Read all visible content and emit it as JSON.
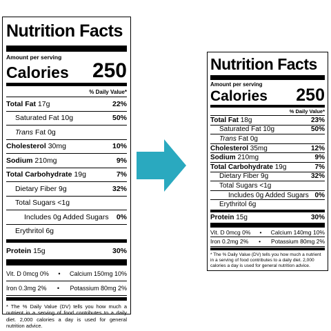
{
  "left_label": {
    "title": "Nutrition Facts",
    "amount_per_serving": "Amount per serving",
    "calories_label": "Calories",
    "calories_value": "250",
    "dv_header": "% Daily Value*",
    "rows": {
      "total_fat": {
        "name": "Total Fat",
        "amount": "17g",
        "pct": "22%"
      },
      "saturated_fat": {
        "name": "Saturated Fat",
        "amount": "10g",
        "pct": "50%"
      },
      "trans_fat": {
        "name": "Trans",
        "rest": "Fat 0g"
      },
      "cholesterol": {
        "name": "Cholesterol",
        "amount": "30mg",
        "pct": "10%"
      },
      "sodium": {
        "name": "Sodium",
        "amount": "210mg",
        "pct": "9%"
      },
      "total_carb": {
        "name": "Total Carbohydrate",
        "amount": "19g",
        "pct": "7%"
      },
      "dietary_fiber": {
        "name": "Dietary Fiber",
        "amount": "9g",
        "pct": "32%"
      },
      "total_sugars": {
        "name": "Total Sugars <1g"
      },
      "added_sugars": {
        "name": "Includes 0g Added Sugars",
        "pct": "0%"
      },
      "erythritol": {
        "name": "Erythritol 6g"
      },
      "protein": {
        "name": "Protein",
        "amount": "15g",
        "pct": "30%"
      }
    },
    "vitamins": {
      "vit_d": "Vit. D 0mcg 0%",
      "calcium": "Calcium 150mg 10%",
      "iron": "Iron 0.3mg 2%",
      "potassium": "Potassium 80mg 2%",
      "separator": "•"
    },
    "footnote": "* The % Daily Value (DV) tells you how much a nutrient in a serving of food contributes to a daily diet. 2,000 calories a day is used for general nutrition advice."
  },
  "right_label": {
    "title": "Nutrition Facts",
    "amount_per_serving": "Amount per serving",
    "calories_label": "Calories",
    "calories_value": "250",
    "dv_header": "% Daily Value*",
    "rows": {
      "total_fat": {
        "name": "Total Fat",
        "amount": "18g",
        "pct": "23%"
      },
      "saturated_fat": {
        "name": "Saturated Fat",
        "amount": "10g",
        "pct": "50%"
      },
      "trans_fat": {
        "name": "Trans",
        "rest": "Fat 0g"
      },
      "cholesterol": {
        "name": "Cholesterol",
        "amount": "35mg",
        "pct": "12%"
      },
      "sodium": {
        "name": "Sodium",
        "amount": "210mg",
        "pct": "9%"
      },
      "total_carb": {
        "name": "Total Carbohydrate",
        "amount": "19g",
        "pct": "7%"
      },
      "dietary_fiber": {
        "name": "Dietary Fiber",
        "amount": "9g",
        "pct": "32%"
      },
      "total_sugars": {
        "name": "Total Sugars <1g"
      },
      "added_sugars": {
        "name": "Includes 0g Added Sugars",
        "pct": "0%"
      },
      "erythritol": {
        "name": "Erythritol 6g"
      },
      "protein": {
        "name": "Protein",
        "amount": "15g",
        "pct": "30%"
      }
    },
    "vitamins": {
      "vit_d": "Vit. D 0mcg 0%",
      "calcium": "Calcium 140mg 10%",
      "iron": "Iron 0.2mg 2%",
      "potassium": "Potassium 80mg 2%",
      "separator": "•"
    },
    "footnote": "* The % Daily Value (DV) tells you how much a nutrient in a serving of food contributes to a daily diet. 2,000 calories a day is used for general nutrition advice."
  },
  "arrow": {
    "icon": "right-arrow-icon",
    "color": "#2aa9bf"
  }
}
